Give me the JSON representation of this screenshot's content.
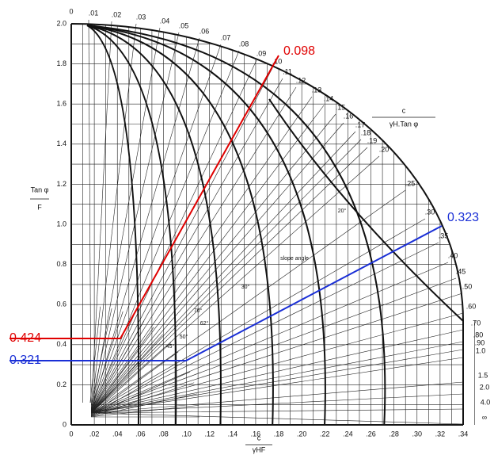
{
  "y_axis": {
    "label_top": "Tan φ",
    "label_bottom": "F",
    "ticks": [
      "0",
      "0.2",
      "0.4",
      "0.6",
      "0.8",
      "1.0",
      "1.2",
      "1.4",
      "1.6",
      "1.8",
      "2.0"
    ]
  },
  "x_axis": {
    "label_top": "c",
    "label_bottom": "γHF",
    "ticks": [
      "0",
      ".02",
      ".04",
      ".06",
      ".08",
      ".10",
      ".12",
      ".14",
      ".16",
      ".18",
      ".20",
      ".22",
      ".24",
      ".26",
      ".28",
      ".30",
      ".32",
      ".34"
    ]
  },
  "arc_scale": {
    "label_top": "c",
    "label_bottom": "γH.Tan φ",
    "ticks": [
      "0",
      ".01",
      ".02",
      ".03",
      ".04",
      ".05",
      ".06",
      ".07",
      ".08",
      ".09",
      ".10",
      ".11",
      ".12",
      ".13",
      ".14",
      ".15",
      ".16",
      ".17",
      ".18",
      ".19",
      ".20",
      ".25",
      ".30",
      ".35",
      ".40",
      ".45",
      ".50",
      ".60",
      ".70",
      ".80",
      ".90",
      "1.0",
      "1.5",
      "2.0",
      "4.0",
      "∞"
    ]
  },
  "annotations": {
    "slope_angle": "slope angle",
    "angles": [
      "20°",
      "30°",
      "70°",
      "62°",
      "50°",
      "45°"
    ]
  },
  "readings": {
    "red_top": "0.098",
    "red_left": "0.424",
    "blue_right": "0.323",
    "blue_left": "0.321"
  }
}
